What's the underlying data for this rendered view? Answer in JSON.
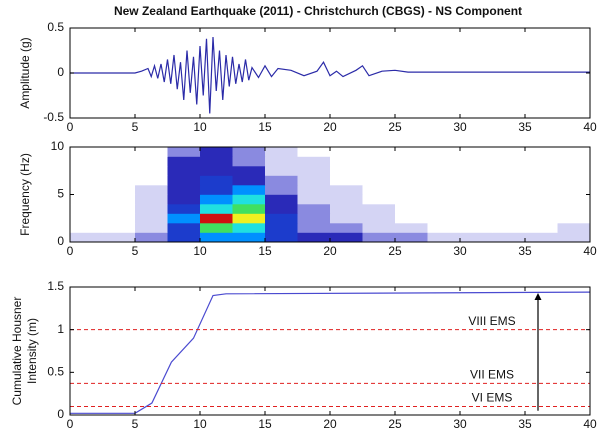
{
  "chart_data": [
    {
      "type": "line",
      "title": "New Zealand Earthquake (2011) - Christchurch (CBGS) - NS Component",
      "ylabel": "Amplitude (g)",
      "color": "#2b2ba8",
      "x": [
        0,
        5,
        5.5,
        6,
        6.25,
        6.5,
        6.75,
        7,
        7.25,
        7.5,
        7.75,
        8,
        8.25,
        8.5,
        8.75,
        9,
        9.25,
        9.5,
        9.75,
        10,
        10.25,
        10.5,
        10.75,
        11,
        11.25,
        11.5,
        11.75,
        12,
        12.25,
        12.5,
        12.75,
        13,
        13.25,
        13.5,
        13.75,
        14,
        14.5,
        15,
        15.5,
        16,
        17,
        18,
        19,
        19.5,
        20,
        20.5,
        21,
        22,
        22.5,
        23,
        24,
        25,
        26,
        28,
        30,
        32,
        34,
        36,
        38,
        40
      ],
      "values": [
        0,
        0,
        0.02,
        0.05,
        -0.04,
        0.08,
        -0.06,
        0.1,
        -0.1,
        0.15,
        -0.12,
        0.2,
        -0.18,
        0.12,
        -0.3,
        0.25,
        -0.22,
        0.18,
        -0.35,
        0.3,
        -0.25,
        0.38,
        -0.45,
        0.4,
        -0.2,
        0.25,
        -0.3,
        0.2,
        -0.15,
        0.18,
        -0.12,
        0.1,
        -0.1,
        0.15,
        -0.08,
        0.06,
        -0.05,
        0.08,
        -0.04,
        0.05,
        0.03,
        -0.03,
        0.02,
        0.12,
        -0.03,
        0.02,
        -0.04,
        0.03,
        0.08,
        -0.03,
        0.02,
        0.03,
        0.01,
        0.01,
        0.01,
        0.01,
        0.01,
        0.01,
        0.01,
        0.01
      ],
      "xlim": [
        0,
        40
      ],
      "xticks": [
        0,
        5,
        10,
        15,
        20,
        25,
        30,
        35,
        40
      ],
      "ylim": [
        -0.5,
        0.5
      ],
      "yticks": [
        -0.5,
        0,
        0.5
      ]
    },
    {
      "type": "heatmap",
      "ylabel": "Frequency (Hz)",
      "xbins": [
        0,
        2.5,
        5,
        7.5,
        10,
        12.5,
        15,
        17.5,
        20,
        22.5,
        25,
        27.5,
        30,
        32.5,
        35,
        37.5,
        40
      ],
      "ybins": [
        0,
        1,
        2,
        3,
        4,
        5,
        6,
        7,
        8,
        9,
        10
      ],
      "z": [
        [
          1,
          1,
          2,
          4,
          5,
          5,
          4,
          3,
          3,
          2,
          2,
          1,
          1,
          1,
          1,
          1
        ],
        [
          0,
          0,
          1,
          4,
          7,
          6,
          4,
          2,
          2,
          1,
          1,
          0,
          0,
          0,
          0,
          1
        ],
        [
          0,
          0,
          1,
          5,
          10,
          8,
          4,
          2,
          1,
          1,
          0,
          0,
          0,
          0,
          0,
          0
        ],
        [
          0,
          0,
          1,
          4,
          6,
          7,
          3,
          2,
          1,
          1,
          0,
          0,
          0,
          0,
          0,
          0
        ],
        [
          0,
          0,
          1,
          3,
          5,
          6,
          3,
          1,
          1,
          0,
          0,
          0,
          0,
          0,
          0,
          0
        ],
        [
          0,
          0,
          1,
          3,
          4,
          5,
          2,
          1,
          1,
          0,
          0,
          0,
          0,
          0,
          0,
          0
        ],
        [
          0,
          0,
          0,
          3,
          4,
          3,
          2,
          1,
          0,
          0,
          0,
          0,
          0,
          0,
          0,
          0
        ],
        [
          0,
          0,
          0,
          3,
          3,
          3,
          1,
          1,
          0,
          0,
          0,
          0,
          0,
          0,
          0,
          0
        ],
        [
          0,
          0,
          0,
          3,
          3,
          2,
          1,
          1,
          0,
          0,
          0,
          0,
          0,
          0,
          0,
          0
        ],
        [
          0,
          0,
          0,
          2,
          3,
          2,
          1,
          0,
          0,
          0,
          0,
          0,
          0,
          0,
          0,
          0
        ]
      ],
      "colorscale": [
        "#ffffff",
        "#d4d4f4",
        "#8a8ae0",
        "#2a2ab8",
        "#1c3ccc",
        "#0090ff",
        "#20e0e0",
        "#40e060",
        "#f0f020",
        "#ff8000",
        "#d01010"
      ],
      "xlim": [
        0,
        40
      ],
      "xticks": [
        0,
        5,
        10,
        15,
        20,
        25,
        30,
        35,
        40
      ],
      "ylim": [
        0,
        10
      ],
      "yticks": [
        0,
        5,
        10
      ]
    },
    {
      "type": "line",
      "ylabel": [
        "Cumulative Housner",
        "Intensity (m)"
      ],
      "color": "#4a4ad0",
      "x": [
        0,
        5,
        6.3,
        7.8,
        9.5,
        11,
        12,
        40
      ],
      "values": [
        0.02,
        0.02,
        0.14,
        0.62,
        0.9,
        1.4,
        1.42,
        1.44
      ],
      "xlim": [
        0,
        40
      ],
      "xticks": [
        0,
        5,
        10,
        15,
        20,
        25,
        30,
        35,
        40
      ],
      "ylim": [
        0,
        1.5
      ],
      "yticks": [
        0,
        0.5,
        1,
        1.5
      ],
      "reference_lines": [
        {
          "value": 1,
          "label": "VIII EMS"
        },
        {
          "value": 0.37,
          "label": "VII EMS"
        },
        {
          "value": 0.1,
          "label": "VI EMS"
        }
      ],
      "reference_color": "#e02020",
      "arrow": {
        "x": 36,
        "y": [
          0.05,
          1.43
        ]
      }
    }
  ]
}
